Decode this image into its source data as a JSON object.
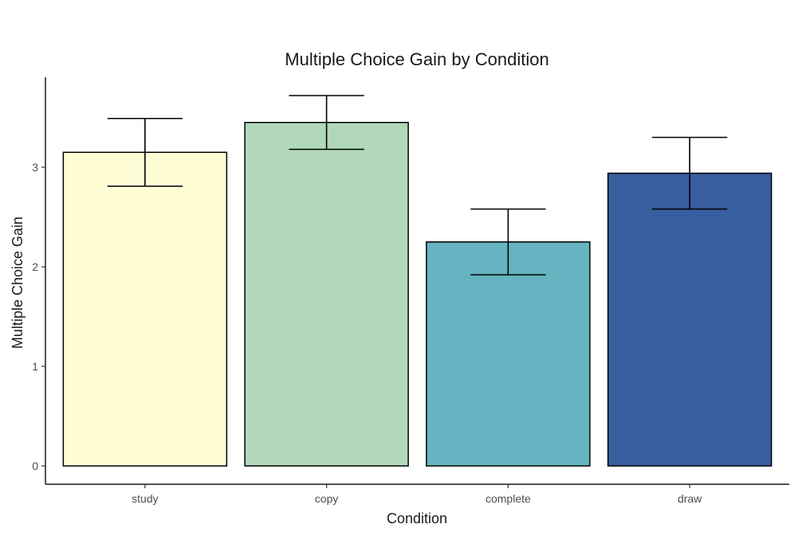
{
  "chart_data": {
    "type": "bar",
    "title": "Multiple Choice Gain by Condition",
    "xlabel": "Condition",
    "ylabel": "Multiple Choice Gain",
    "categories": [
      "study",
      "copy",
      "complete",
      "draw"
    ],
    "values": [
      3.15,
      3.45,
      2.25,
      2.94
    ],
    "error_low": [
      2.81,
      3.18,
      1.92,
      2.58
    ],
    "error_high": [
      3.49,
      3.72,
      2.58,
      3.3
    ],
    "colors": [
      "#FFFDD6",
      "#B1D8B9",
      "#66B3C1",
      "#385E9F"
    ],
    "yticks": [
      0,
      1,
      2,
      3
    ],
    "ylim": [
      -0.18,
      3.9
    ],
    "grid": false,
    "legend": "none"
  }
}
